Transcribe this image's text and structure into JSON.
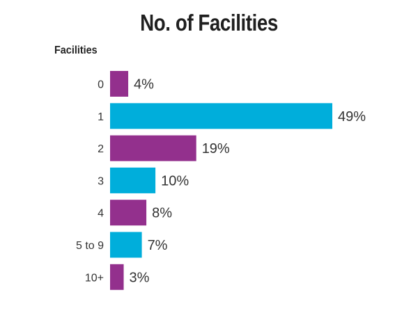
{
  "chart_data": {
    "type": "bar",
    "orientation": "horizontal",
    "title": "No. of Facilities",
    "ylabel": "Facilities",
    "xlabel": "",
    "categories": [
      "0",
      "1",
      "2",
      "3",
      "4",
      "5 to 9",
      "10+"
    ],
    "values": [
      4,
      49,
      19,
      10,
      8,
      7,
      3
    ],
    "value_labels": [
      "4%",
      "49%",
      "19%",
      "10%",
      "8%",
      "7%",
      "3%"
    ],
    "value_unit": "%",
    "xlim": [
      0,
      49
    ],
    "grid": false,
    "legend": "none",
    "colors": [
      "#93308d",
      "#00aedb",
      "#93308d",
      "#00aedb",
      "#93308d",
      "#00aedb",
      "#93308d"
    ]
  }
}
